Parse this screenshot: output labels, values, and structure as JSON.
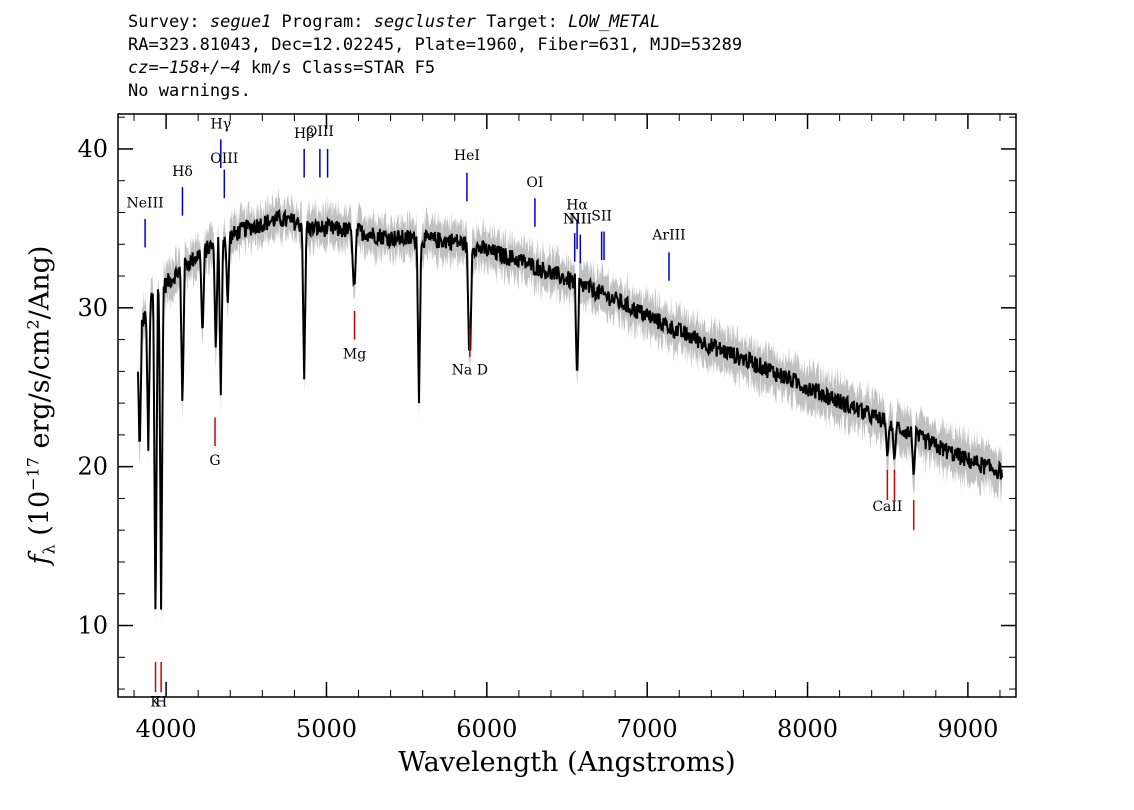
{
  "header": {
    "line1": {
      "survey_label": "Survey: ",
      "survey": "segue1",
      "program_label": " Program: ",
      "program": "segcluster",
      "target_label": " Target: ",
      "target": "LOW_METAL"
    },
    "line2": "RA=323.81043, Dec=12.02245, Plate=1960, Fiber=631, MJD=53289",
    "line3": {
      "cz": "cz=−158+/−4",
      "rest": " km/s Class=STAR F5"
    },
    "line4": "No warnings."
  },
  "chart_data": {
    "type": "line",
    "xlabel": "Wavelength (Angstroms)",
    "ylabel": {
      "symbol": "f",
      "sub": "λ",
      "pre": " (10",
      "exp": "−17",
      "mid": " erg/s/cm",
      "exp2": "2",
      "post": "/Ang)"
    },
    "xlim": [
      3700,
      9300
    ],
    "ylim": [
      5.5,
      42.2
    ],
    "x_ticks": [
      4000,
      5000,
      6000,
      7000,
      8000,
      9000
    ],
    "y_ticks": [
      10,
      20,
      30,
      40
    ],
    "continuum": [
      [
        3820,
        28
      ],
      [
        3900,
        30.5
      ],
      [
        4000,
        31.5
      ],
      [
        4100,
        32.5
      ],
      [
        4200,
        33.3
      ],
      [
        4300,
        34
      ],
      [
        4400,
        34.5
      ],
      [
        4500,
        35
      ],
      [
        4600,
        35.3
      ],
      [
        4700,
        35.6
      ],
      [
        4800,
        35.4
      ],
      [
        4900,
        35
      ],
      [
        5000,
        35
      ],
      [
        5200,
        34.8
      ],
      [
        5400,
        34.4
      ],
      [
        5600,
        34.3
      ],
      [
        5800,
        34.2
      ],
      [
        6000,
        33.6
      ],
      [
        6200,
        33
      ],
      [
        6400,
        32.2
      ],
      [
        6600,
        31.4
      ],
      [
        6800,
        30.5
      ],
      [
        7000,
        29.5
      ],
      [
        7200,
        28.5
      ],
      [
        7400,
        27.6
      ],
      [
        7600,
        26.8
      ],
      [
        7800,
        25.9
      ],
      [
        8000,
        25
      ],
      [
        8200,
        24.1
      ],
      [
        8400,
        23.2
      ],
      [
        8600,
        22.3
      ],
      [
        8800,
        21.3
      ],
      [
        9000,
        20.4
      ],
      [
        9200,
        19.7
      ]
    ],
    "absorption_lines": [
      [
        3835,
        20.5
      ],
      [
        3889,
        21
      ],
      [
        3934,
        9.5
      ],
      [
        3969,
        11
      ],
      [
        4102,
        23.5
      ],
      [
        4227,
        28
      ],
      [
        4310,
        27
      ],
      [
        4341,
        24.5
      ],
      [
        4384,
        30
      ],
      [
        4861,
        25.5
      ],
      [
        5169,
        31.5
      ],
      [
        5175,
        31
      ],
      [
        5577,
        24
      ],
      [
        5890,
        26.8
      ],
      [
        5896,
        26.8
      ],
      [
        6563,
        25.2
      ],
      [
        8498,
        20.5
      ],
      [
        8542,
        20.3
      ],
      [
        8662,
        19.3
      ]
    ],
    "emission_lines": [
      {
        "label": "NeIII",
        "x": 3869,
        "y1": 33.8,
        "y2": 35.6,
        "label_y": 36.3
      },
      {
        "label": "Hδ",
        "x": 4102,
        "y1": 35.8,
        "y2": 37.6,
        "label_y": 38.3
      },
      {
        "label": "Hγ",
        "x": 4341,
        "y1": 38.8,
        "y2": 40.6,
        "label_y": 41.3
      },
      {
        "label": "OIII",
        "x": 4363,
        "y1": 36.9,
        "y2": 38.7,
        "label_y": 39.1
      },
      {
        "label": "Hβ",
        "x": 4861,
        "y1": 38.2,
        "y2": 40,
        "label_y": 40.7
      },
      {
        "label": "OIII",
        "x": 4959,
        "y1": 38.2,
        "y2": 40,
        "label_y": 40.8
      },
      {
        "label": "OIII",
        "x": 5007,
        "y1": 38.2,
        "y2": 40
      },
      {
        "label": "HeI",
        "x": 5876,
        "y1": 36.7,
        "y2": 38.5,
        "label_y": 39.3
      },
      {
        "label": "OI",
        "x": 6300,
        "y1": 35.1,
        "y2": 36.9,
        "label_y": 37.6
      },
      {
        "label": "NII",
        "x": 6548,
        "y1": 32.9,
        "y2": 34.7,
        "label_y": 35.3
      },
      {
        "label": "Hα",
        "x": 6563,
        "y1": 33.7,
        "y2": 35.5,
        "label_y": 36.2
      },
      {
        "label": "NII",
        "x": 6583,
        "y1": 32.8,
        "y2": 34.6,
        "label_y": 35.3
      },
      {
        "label": "SII",
        "x": 6716,
        "y1": 33,
        "y2": 34.8,
        "label_y": 35.5
      },
      {
        "label": "SII",
        "x": 6731,
        "y1": 33,
        "y2": 34.8
      },
      {
        "label": "ArIII",
        "x": 7136,
        "y1": 31.7,
        "y2": 33.5,
        "label_y": 34.3
      }
    ],
    "stellar_lines": [
      {
        "label": "K",
        "x": 3934,
        "y1": 5.8,
        "y2": 7.7,
        "label_y": 4.9
      },
      {
        "label": "H",
        "x": 3969,
        "y1": 5.8,
        "y2": 7.7,
        "label_y": 4.9
      },
      {
        "label": "G",
        "x": 4305,
        "y1": 21.3,
        "y2": 23.1,
        "label_y": 20.1
      },
      {
        "label": "Mg",
        "x": 5175,
        "y1": 28,
        "y2": 29.8,
        "label_y": 26.8
      },
      {
        "label": "Na D",
        "x": 5894,
        "y1": 26.9,
        "y2": 28.7,
        "label_y": 25.8
      },
      {
        "label": "CaII",
        "x": 8498,
        "y1": 17.9,
        "y2": 19.8,
        "label_y": 17.2
      },
      {
        "label": "",
        "x": 8542,
        "y1": 17.9,
        "y2": 19.8
      },
      {
        "label": "",
        "x": 8662,
        "y1": 16,
        "y2": 17.9
      }
    ],
    "colors": {
      "flux": "#000000",
      "error": "#c0c0c0",
      "emission": "#0000cc",
      "stellar": "#d00000"
    }
  }
}
